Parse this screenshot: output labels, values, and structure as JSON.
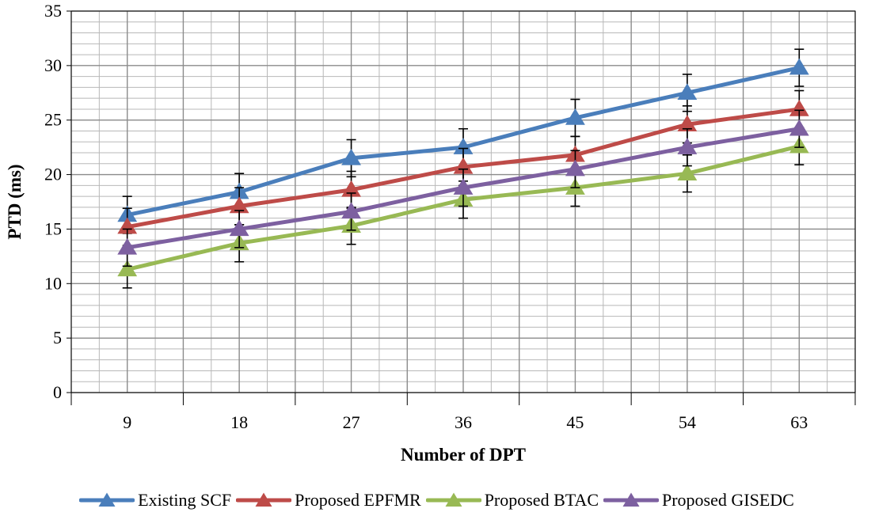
{
  "chart_data": {
    "type": "line",
    "title": "",
    "xlabel": "Number of DPT",
    "ylabel": "PTD (ms)",
    "categories": [
      "9",
      "18",
      "27",
      "36",
      "45",
      "54",
      "63"
    ],
    "ylim": [
      0,
      35
    ],
    "yticks": [
      0,
      5,
      10,
      15,
      20,
      25,
      30,
      35
    ],
    "grid": true,
    "legend_position": "bottom",
    "error_bar": 1.7,
    "series": [
      {
        "name": "Existing SCF",
        "color": "#4a7ebb",
        "values": [
          16.3,
          18.4,
          21.5,
          22.5,
          25.2,
          27.5,
          29.8
        ]
      },
      {
        "name": "Proposed EPFMR",
        "color": "#be4b48",
        "values": [
          15.2,
          17.1,
          18.6,
          20.7,
          21.8,
          24.6,
          26.0
        ]
      },
      {
        "name": "Proposed BTAC",
        "color": "#98b954",
        "values": [
          11.3,
          13.7,
          15.3,
          17.7,
          18.8,
          20.1,
          22.6
        ]
      },
      {
        "name": "Proposed GISEDC",
        "color": "#7d60a0",
        "values": [
          13.3,
          15.0,
          16.6,
          18.8,
          20.5,
          22.5,
          24.2
        ]
      }
    ]
  }
}
